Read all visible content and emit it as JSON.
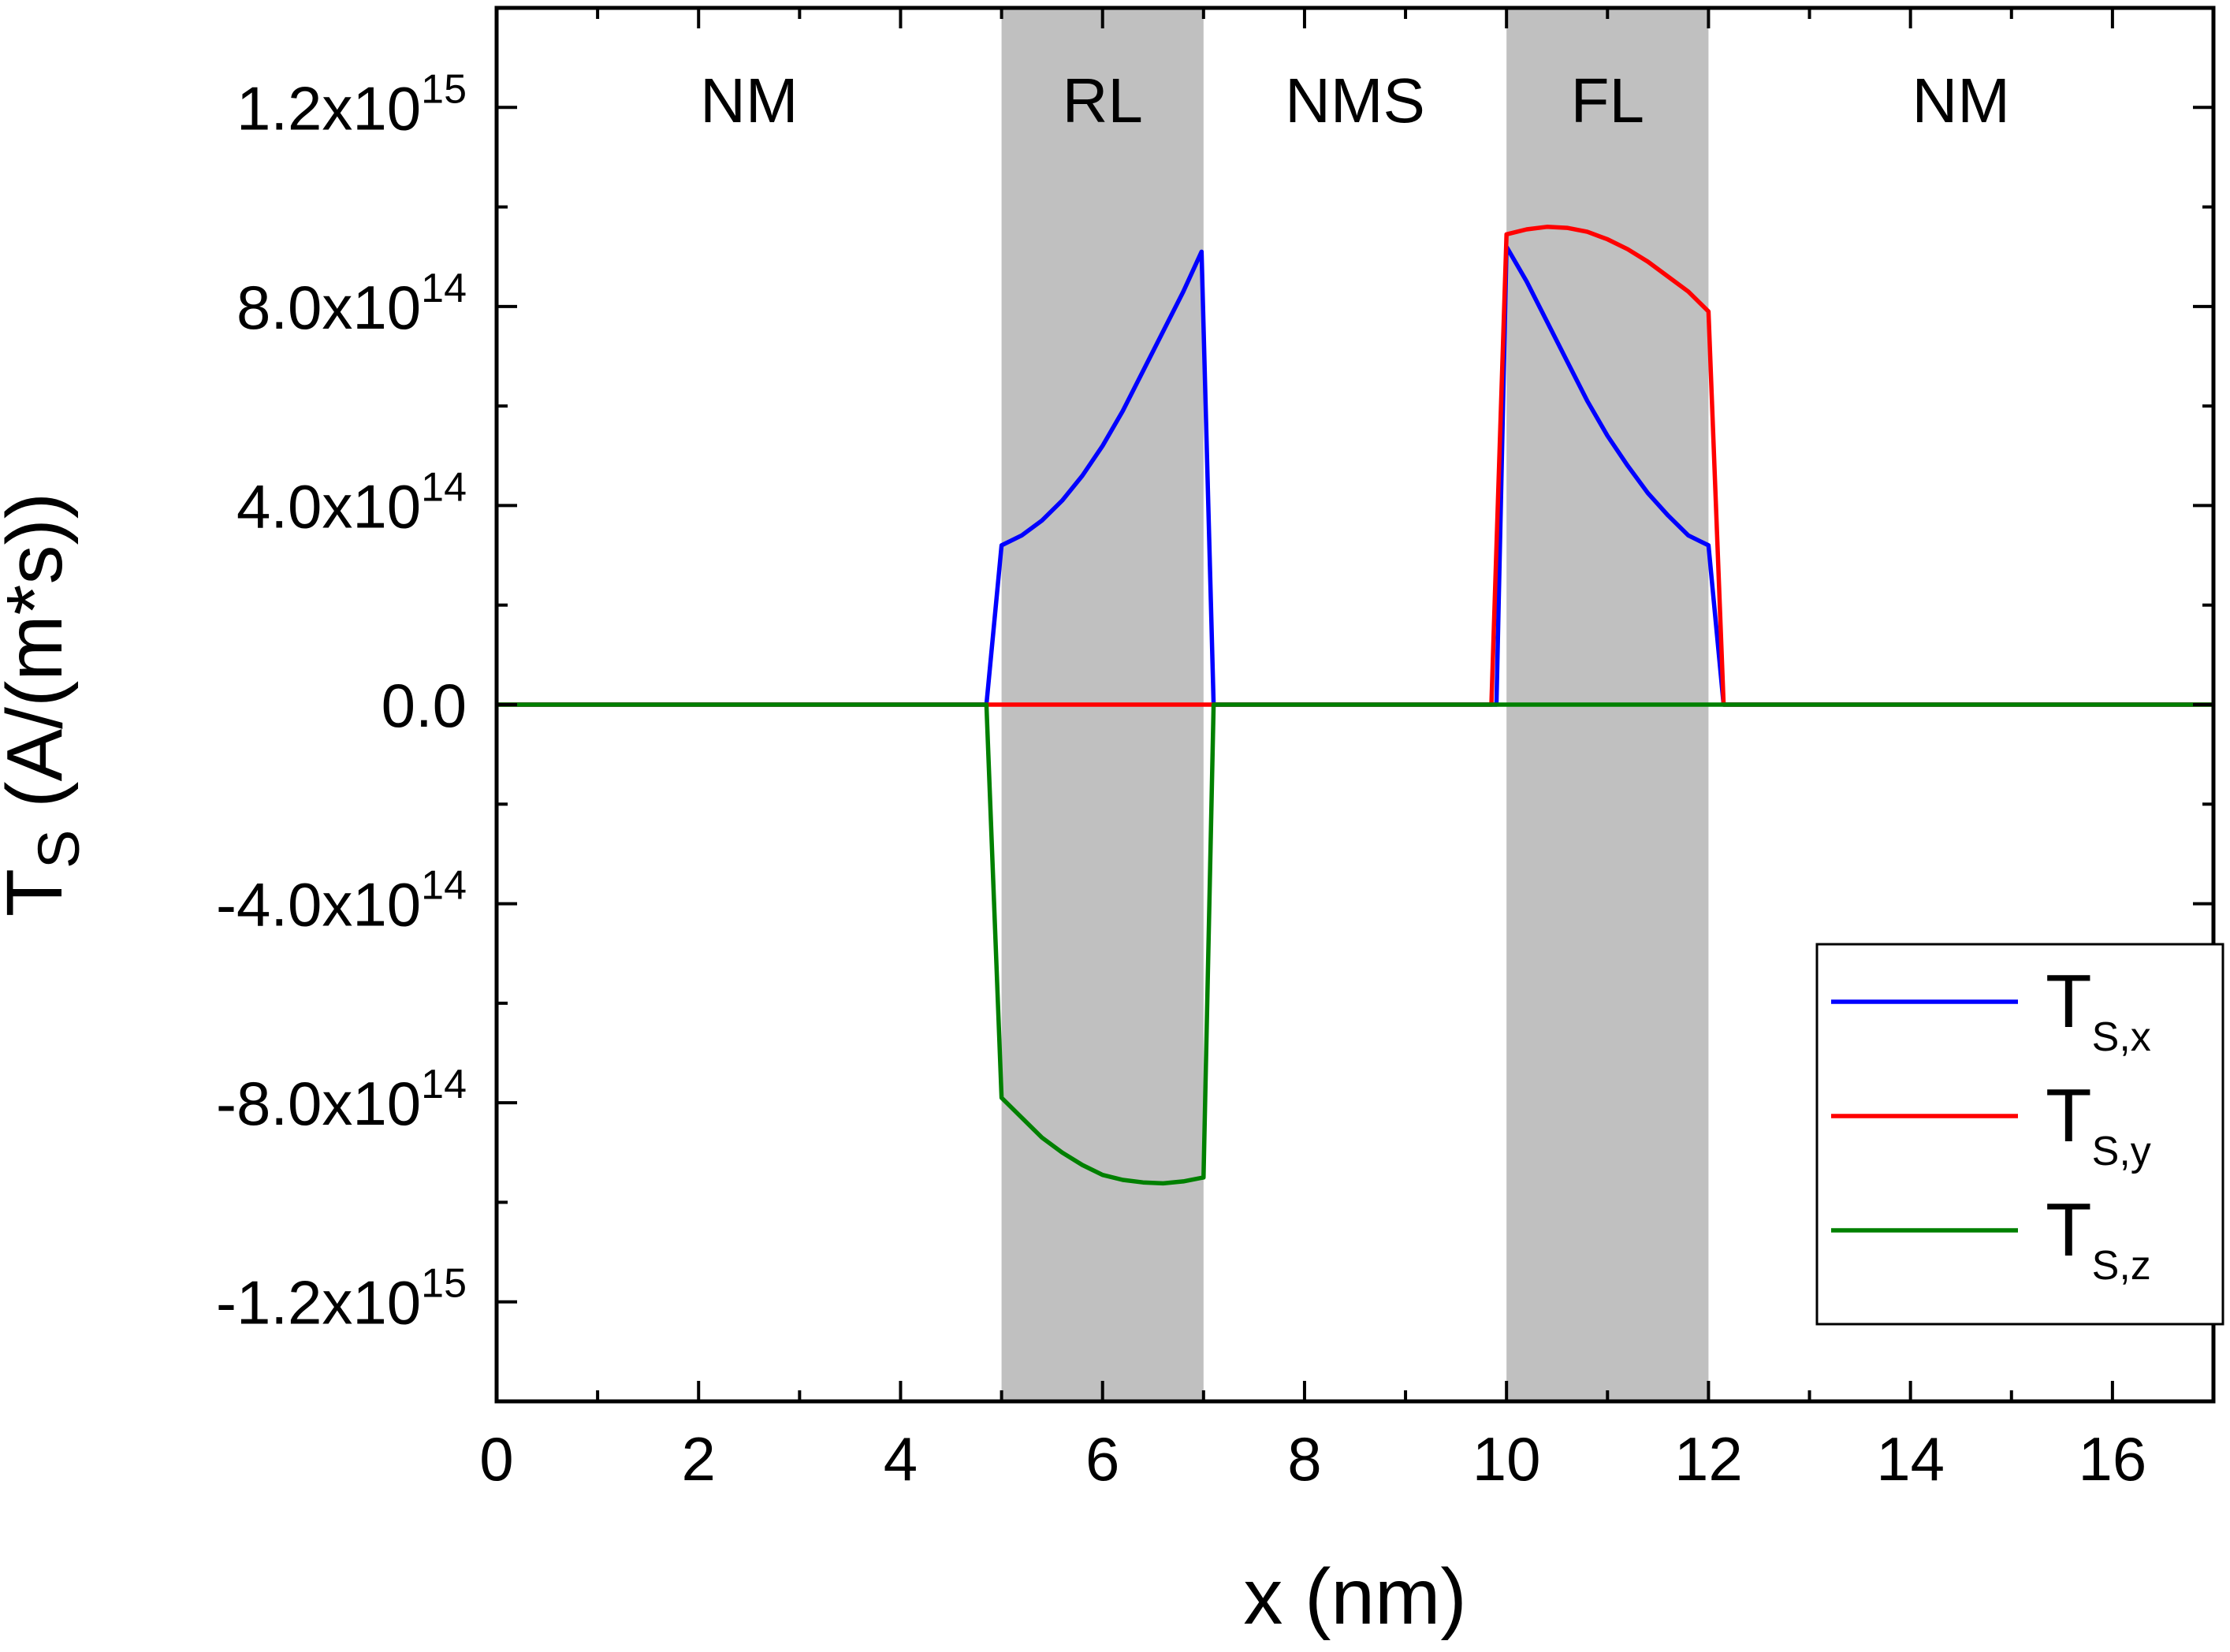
{
  "chart_data": {
    "type": "line",
    "title": "",
    "xlabel": "x (nm)",
    "ylabel": {
      "main": "T",
      "sub": "S",
      "rest": " (A/(m*s))"
    },
    "xlim": [
      0,
      17
    ],
    "ylim": [
      -1400000000000000.0,
      1400000000000000.0
    ],
    "x_ticks": [
      {
        "value": 0,
        "label": "0"
      },
      {
        "value": 2,
        "label": "2"
      },
      {
        "value": 4,
        "label": "4"
      },
      {
        "value": 6,
        "label": "6"
      },
      {
        "value": 8,
        "label": "8"
      },
      {
        "value": 10,
        "label": "10"
      },
      {
        "value": 12,
        "label": "12"
      },
      {
        "value": 14,
        "label": "14"
      },
      {
        "value": 16,
        "label": "16"
      }
    ],
    "x_minor_step": 1,
    "y_ticks": [
      {
        "value": 1200000000000000.0,
        "mantissa": "1.2x10",
        "exp": "15"
      },
      {
        "value": 800000000000000.0,
        "mantissa": "8.0x10",
        "exp": "14"
      },
      {
        "value": 400000000000000.0,
        "mantissa": "4.0x10",
        "exp": "14"
      },
      {
        "value": 0,
        "mantissa": "0.0",
        "exp": ""
      },
      {
        "value": -400000000000000.0,
        "mantissa": "-4.0x10",
        "exp": "14"
      },
      {
        "value": -800000000000000.0,
        "mantissa": "-8.0x10",
        "exp": "14"
      },
      {
        "value": -1200000000000000.0,
        "mantissa": "-1.2x10",
        "exp": "15"
      }
    ],
    "y_minor_step": 200000000000000.0,
    "regions": [
      {
        "label": "NM",
        "start": 0,
        "end": 5,
        "shaded": false
      },
      {
        "label": "RL",
        "start": 5,
        "end": 7,
        "shaded": true
      },
      {
        "label": "NMS",
        "start": 7,
        "end": 10,
        "shaded": false
      },
      {
        "label": "FL",
        "start": 10,
        "end": 12,
        "shaded": true
      },
      {
        "label": "NM",
        "start": 12,
        "end": 17,
        "shaded": false
      }
    ],
    "legend": {
      "position": "bottom-right",
      "entries": [
        {
          "main": "T",
          "sub": "S,x",
          "color": "#0000ff"
        },
        {
          "main": "T",
          "sub": "S,y",
          "color": "#ff0000"
        },
        {
          "main": "T",
          "sub": "S,z",
          "color": "#008000"
        }
      ]
    },
    "series": [
      {
        "color": "#0000ff",
        "points": [
          [
            0,
            0
          ],
          [
            4.85,
            0
          ],
          [
            5.0,
            320000000000000.0
          ],
          [
            5.2,
            340000000000000.0
          ],
          [
            5.4,
            370000000000000.0
          ],
          [
            5.6,
            410000000000000.0
          ],
          [
            5.8,
            460000000000000.0
          ],
          [
            6.0,
            520000000000000.0
          ],
          [
            6.2,
            590000000000000.0
          ],
          [
            6.4,
            670000000000000.0
          ],
          [
            6.6,
            750000000000000.0
          ],
          [
            6.8,
            830000000000000.0
          ],
          [
            6.98,
            910000000000000.0
          ],
          [
            7.1,
            0
          ],
          [
            9.9,
            0
          ],
          [
            10.0,
            920000000000000.0
          ],
          [
            10.2,
            850000000000000.0
          ],
          [
            10.4,
            770000000000000.0
          ],
          [
            10.6,
            690000000000000.0
          ],
          [
            10.8,
            610000000000000.0
          ],
          [
            11.0,
            540000000000000.0
          ],
          [
            11.2,
            480000000000000.0
          ],
          [
            11.4,
            425000000000000.0
          ],
          [
            11.6,
            380000000000000.0
          ],
          [
            11.8,
            340000000000000.0
          ],
          [
            12.0,
            320000000000000.0
          ],
          [
            12.15,
            0
          ],
          [
            17,
            0
          ]
        ]
      },
      {
        "color": "#ff0000",
        "points": [
          [
            0,
            0
          ],
          [
            9.85,
            0
          ],
          [
            10.0,
            945000000000000.0
          ],
          [
            10.2,
            955000000000000.0
          ],
          [
            10.4,
            960000000000000.0
          ],
          [
            10.6,
            958000000000000.0
          ],
          [
            10.8,
            950000000000000.0
          ],
          [
            11.0,
            935000000000000.0
          ],
          [
            11.2,
            915000000000000.0
          ],
          [
            11.4,
            890000000000000.0
          ],
          [
            11.6,
            860000000000000.0
          ],
          [
            11.8,
            830000000000000.0
          ],
          [
            12.0,
            790000000000000.0
          ],
          [
            12.15,
            0
          ],
          [
            17,
            0
          ]
        ]
      },
      {
        "color": "#008000",
        "points": [
          [
            0,
            0
          ],
          [
            4.85,
            0
          ],
          [
            5.0,
            -790000000000000.0
          ],
          [
            5.2,
            -830000000000000.0
          ],
          [
            5.4,
            -870000000000000.0
          ],
          [
            5.6,
            -900000000000000.0
          ],
          [
            5.8,
            -925000000000000.0
          ],
          [
            6.0,
            -945000000000000.0
          ],
          [
            6.2,
            -955000000000000.0
          ],
          [
            6.4,
            -960000000000000.0
          ],
          [
            6.6,
            -962000000000000.0
          ],
          [
            6.8,
            -958000000000000.0
          ],
          [
            7.0,
            -950000000000000.0
          ],
          [
            7.1,
            0
          ],
          [
            17,
            0
          ]
        ]
      }
    ]
  }
}
